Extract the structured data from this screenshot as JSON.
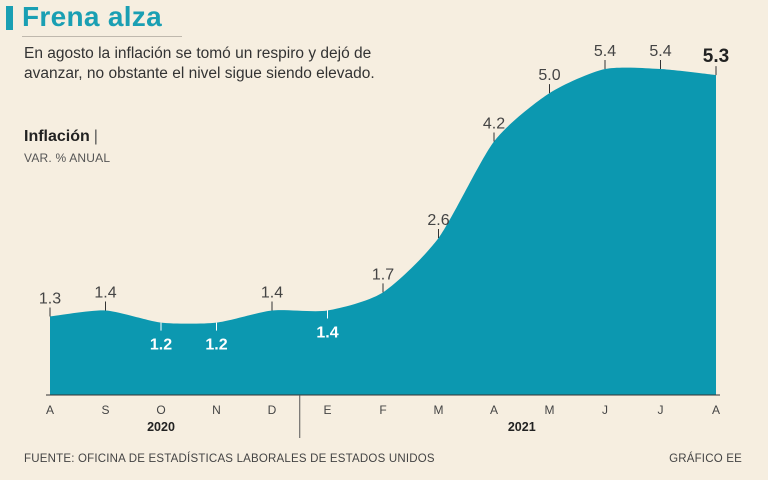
{
  "header": {
    "title": "Frena alza",
    "subtitle": "En agosto la inflación se tomó un respiro y dejó de avanzar, no obstante el nivel sigue siendo elevado.",
    "measure": "Inflación",
    "measure_sep": "|",
    "unit": "VAR. % ANUAL"
  },
  "footer": {
    "source": "FUENTE: OFICINA DE ESTADÍSTICAS LABORALES DE ESTADOS UNIDOS",
    "credit": "GRÁFICO EE"
  },
  "colors": {
    "accent": "#1a9fb3",
    "area": "#0c98b0",
    "background": "#f6eee0"
  },
  "chart_data": {
    "type": "area",
    "title": "Inflación",
    "ylabel": "VAR. % ANUAL",
    "xlabel": "",
    "ylim": [
      0,
      6
    ],
    "categories": [
      "A",
      "S",
      "O",
      "N",
      "D",
      "E",
      "F",
      "M",
      "A",
      "M",
      "J",
      "J",
      "A"
    ],
    "values": [
      1.3,
      1.4,
      1.2,
      1.2,
      1.4,
      1.4,
      1.7,
      2.6,
      4.2,
      5.0,
      5.4,
      5.4,
      5.3
    ],
    "data_labels": [
      "1.3",
      "1.4",
      "1.2",
      "1.2",
      "1.4",
      "1.4",
      "1.7",
      "2.6",
      "4.2",
      "5.0",
      "5.4",
      "5.4",
      "5.3"
    ],
    "label_position": [
      "above",
      "above",
      "inside",
      "inside",
      "above",
      "inside",
      "above",
      "above",
      "above",
      "above",
      "above",
      "above",
      "above-bold"
    ],
    "years": [
      {
        "label": "2020",
        "from": 0,
        "to": 4
      },
      {
        "label": "2021",
        "from": 5,
        "to": 12
      }
    ],
    "grid": false,
    "legend": "none"
  }
}
